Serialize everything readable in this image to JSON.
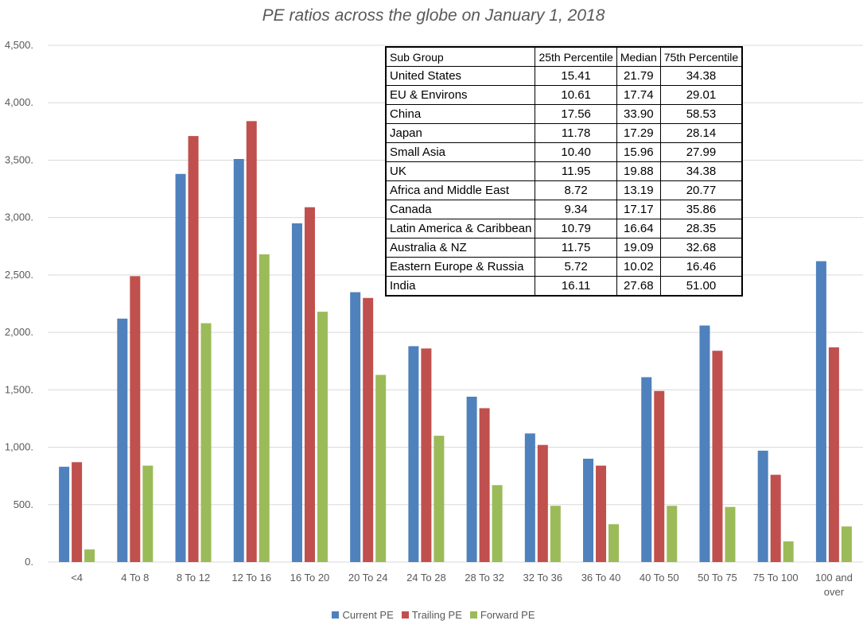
{
  "chart_data": {
    "type": "bar",
    "title": "PE ratios across the globe on January 1, 2018",
    "xlabel": "",
    "ylabel": "",
    "ylim": [
      0,
      4500
    ],
    "yticks": [
      "0.",
      "500.",
      "1,000.",
      "1,500.",
      "2,000.",
      "2,500.",
      "3,000.",
      "3,500.",
      "4,000.",
      "4,500."
    ],
    "ytick_values": [
      0,
      500,
      1000,
      1500,
      2000,
      2500,
      3000,
      3500,
      4000,
      4500
    ],
    "grid": true,
    "legend_position": "bottom",
    "categories": [
      "<4",
      "4 To 8",
      "8 To 12",
      "12 To 16",
      "16 To 20",
      "20 To 24",
      "24 To 28",
      "28 To 32",
      "32 To 36",
      "36 To 40",
      "40 To 50",
      "50 To 75",
      "75 To 100",
      "100 and over"
    ],
    "series": [
      {
        "name": "Current PE",
        "color": "#4f81bd",
        "values": [
          830,
          2120,
          3380,
          3510,
          2950,
          2350,
          1880,
          1440,
          1120,
          900,
          1610,
          2060,
          970,
          2620
        ]
      },
      {
        "name": "Trailing PE",
        "color": "#c0504d",
        "values": [
          870,
          2490,
          3710,
          3840,
          3090,
          2300,
          1860,
          1340,
          1020,
          840,
          1490,
          1840,
          760,
          1870
        ]
      },
      {
        "name": "Forward PE",
        "color": "#9bbb59",
        "values": [
          110,
          840,
          2080,
          2680,
          2180,
          1630,
          1100,
          670,
          490,
          330,
          490,
          480,
          180,
          310
        ]
      }
    ]
  },
  "table": {
    "headers": [
      "Sub Group",
      "25th Percentile",
      "Median",
      "75th Percentile"
    ],
    "rows": [
      [
        "United States",
        "15.41",
        "21.79",
        "34.38"
      ],
      [
        "EU & Environs",
        "10.61",
        "17.74",
        "29.01"
      ],
      [
        "China",
        "17.56",
        "33.90",
        "58.53"
      ],
      [
        "Japan",
        "11.78",
        "17.29",
        "28.14"
      ],
      [
        "Small Asia",
        "10.40",
        "15.96",
        "27.99"
      ],
      [
        "UK",
        "11.95",
        "19.88",
        "34.38"
      ],
      [
        "Africa and Middle East",
        "8.72",
        "13.19",
        "20.77"
      ],
      [
        "Canada",
        "9.34",
        "17.17",
        "35.86"
      ],
      [
        "Latin America & Caribbean",
        "10.79",
        "16.64",
        "28.35"
      ],
      [
        "Australia & NZ",
        "11.75",
        "19.09",
        "32.68"
      ],
      [
        "Eastern Europe & Russia",
        "5.72",
        "10.02",
        "16.46"
      ],
      [
        "India",
        "16.11",
        "27.68",
        "51.00"
      ]
    ]
  }
}
